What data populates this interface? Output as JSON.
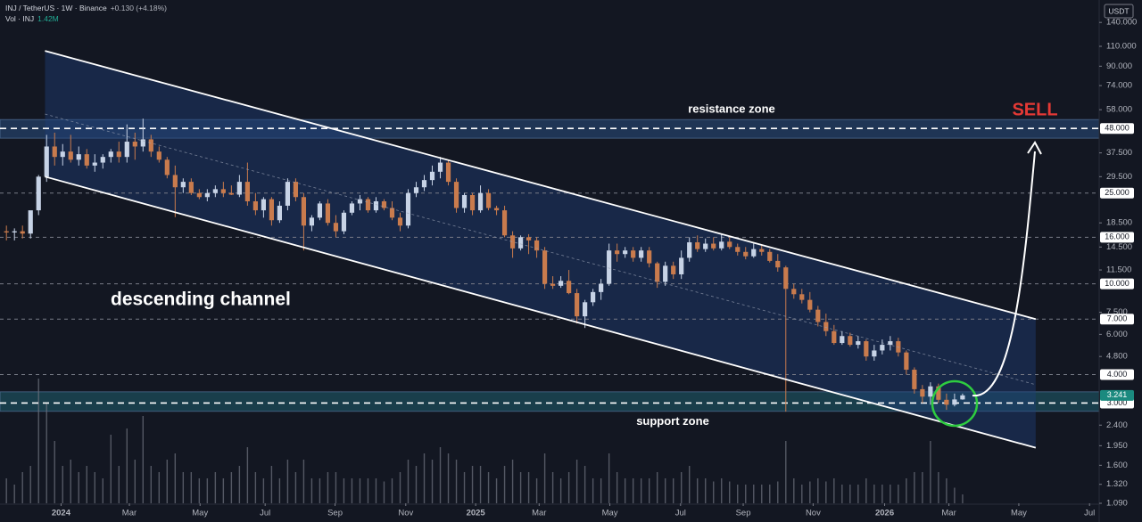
{
  "chart_data": {
    "type": "candlestick",
    "symbol_line": "INJ / TetherUS · 1W · Binance",
    "change": "+0.130 (+4.18%)",
    "volume_title": "Vol · INJ",
    "volume_label": "1.42M",
    "currency": "USDT",
    "log_scale": true,
    "color_up": "#c7d3e6",
    "color_down": "#c97b4d",
    "ylim": [
      1.09,
      175.6
    ],
    "xlim": [
      -0.8,
      136
    ],
    "vlim": [
      0,
      24
    ],
    "yticks": [
      {
        "value": 140,
        "label": "140.000"
      },
      {
        "value": 110,
        "label": "110.000"
      },
      {
        "value": 90,
        "label": "90.000"
      },
      {
        "value": 74,
        "label": "74.000"
      },
      {
        "value": 58,
        "label": "58.000"
      },
      {
        "value": 37.5,
        "label": "37.500"
      },
      {
        "value": 29.5,
        "label": "29.500"
      },
      {
        "value": 18.5,
        "label": "18.500"
      },
      {
        "value": 14.5,
        "label": "14.500"
      },
      {
        "value": 11.5,
        "label": "11.500"
      },
      {
        "value": 7.5,
        "label": "7.500"
      },
      {
        "value": 6,
        "label": "6.000"
      },
      {
        "value": 4.8,
        "label": "4.800"
      },
      {
        "value": 2.4,
        "label": "2.400"
      },
      {
        "value": 1.95,
        "label": "1.950"
      },
      {
        "value": 1.6,
        "label": "1.600"
      },
      {
        "value": 1.32,
        "label": "1.320"
      },
      {
        "value": 1.09,
        "label": "1.090"
      }
    ],
    "xticks": [
      {
        "value": 6.8,
        "label": "2024"
      },
      {
        "value": 15.3,
        "label": "Mar"
      },
      {
        "value": 24.1,
        "label": "May"
      },
      {
        "value": 32.2,
        "label": "Jul"
      },
      {
        "value": 40.9,
        "label": "Sep"
      },
      {
        "value": 49.7,
        "label": "Nov"
      },
      {
        "value": 58.4,
        "label": "2025"
      },
      {
        "value": 66.3,
        "label": "Mar"
      },
      {
        "value": 75.1,
        "label": "May"
      },
      {
        "value": 83.9,
        "label": "Jul"
      },
      {
        "value": 91.7,
        "label": "Sep"
      },
      {
        "value": 100.4,
        "label": "Nov"
      },
      {
        "value": 109.3,
        "label": "2026"
      },
      {
        "value": 117.3,
        "label": "Mar"
      },
      {
        "value": 126,
        "label": "May"
      },
      {
        "value": 134.8,
        "label": "Jul"
      }
    ],
    "levels": [
      {
        "value": 48,
        "label": "48.000",
        "color": "#ffffff"
      },
      {
        "value": 25,
        "label": "25.000",
        "color": "#787b86"
      },
      {
        "value": 16,
        "label": "16.000",
        "color": "#787b86"
      },
      {
        "value": 10,
        "label": "10.000",
        "color": "#787b86"
      },
      {
        "value": 7,
        "label": "7.000",
        "color": "#787b86"
      },
      {
        "value": 4,
        "label": "4.000",
        "color": "#787b86"
      },
      {
        "value": 3,
        "label": "3.000",
        "color": "#ffffff"
      }
    ],
    "last_price": {
      "value": 3.241,
      "label": "3.241"
    },
    "zones": [
      {
        "label": "resistance zone",
        "range": [
          43.5,
          52.5
        ],
        "color": "#2a4f7f"
      },
      {
        "label": "support zone",
        "range": [
          2.76,
          3.36
        ],
        "color": "#1f5f6e"
      }
    ],
    "channel": {
      "label": "descending channel",
      "x": [
        4.8,
        128.1
      ],
      "upper": [
        105,
        7
      ],
      "lower": [
        29.5,
        1.91
      ],
      "middle": [
        55.5,
        3.61
      ]
    },
    "signal": "SELL",
    "ohlc": [
      [
        17,
        18,
        15.5,
        16.8
      ],
      [
        16.8,
        17.5,
        15.5,
        17
      ],
      [
        17,
        18,
        15.8,
        16.6
      ],
      [
        16.6,
        20.5,
        15.8,
        21
      ],
      [
        21,
        30,
        20,
        29.5
      ],
      [
        29.5,
        45,
        28,
        40
      ],
      [
        40,
        46,
        33,
        36
      ],
      [
        36,
        41,
        33,
        38
      ],
      [
        38,
        45,
        34,
        35
      ],
      [
        35,
        40,
        33,
        37
      ],
      [
        37,
        39,
        32,
        33
      ],
      [
        33,
        37,
        31,
        34
      ],
      [
        34,
        37,
        32,
        36
      ],
      [
        36,
        39,
        34,
        38
      ],
      [
        38,
        42,
        34,
        36
      ],
      [
        36,
        50,
        34,
        42
      ],
      [
        42,
        46,
        35,
        40
      ],
      [
        40,
        53,
        38,
        43
      ],
      [
        43,
        45,
        36,
        38
      ],
      [
        38,
        40,
        34,
        35
      ],
      [
        35,
        36,
        29,
        30
      ],
      [
        30,
        33,
        19.6,
        26.5
      ],
      [
        26.5,
        29,
        25,
        28
      ],
      [
        28,
        29,
        24.5,
        25
      ],
      [
        25,
        26,
        23.5,
        24
      ],
      [
        24,
        26,
        23,
        25
      ],
      [
        25,
        27,
        24,
        26
      ],
      [
        26,
        28,
        24,
        25
      ],
      [
        25,
        27,
        24.5,
        24.6
      ],
      [
        24.6,
        30,
        24,
        28
      ],
      [
        28,
        34,
        22,
        23
      ],
      [
        23,
        25,
        20,
        21
      ],
      [
        21,
        24,
        19.5,
        23.5
      ],
      [
        23.5,
        24,
        18,
        19
      ],
      [
        19,
        23,
        18.5,
        22
      ],
      [
        22,
        29,
        21,
        28
      ],
      [
        28,
        29,
        23,
        24
      ],
      [
        24,
        25,
        14,
        18
      ],
      [
        18,
        20,
        17,
        19.5
      ],
      [
        19.5,
        23,
        19,
        22.5
      ],
      [
        22.5,
        23.5,
        18,
        18.5
      ],
      [
        18.5,
        20,
        16,
        17
      ],
      [
        17,
        21,
        16.5,
        20.5
      ],
      [
        20.5,
        23,
        20,
        22.5
      ],
      [
        22.5,
        24.5,
        21,
        23.5
      ],
      [
        23.5,
        24,
        20.5,
        21
      ],
      [
        21,
        24,
        20.5,
        23
      ],
      [
        23,
        23.5,
        21,
        21.5
      ],
      [
        21.5,
        23,
        19,
        19.5
      ],
      [
        19.5,
        20.5,
        17,
        18
      ],
      [
        18,
        26,
        17.5,
        25
      ],
      [
        25,
        28,
        24,
        26.5
      ],
      [
        26.5,
        30,
        25.5,
        28.5
      ],
      [
        28.5,
        33,
        27,
        31
      ],
      [
        31,
        36,
        29,
        34
      ],
      [
        34,
        35,
        27,
        28
      ],
      [
        28,
        29,
        20.5,
        21.5
      ],
      [
        21.5,
        25,
        20.5,
        24.5
      ],
      [
        24.5,
        25,
        20,
        21
      ],
      [
        21,
        27,
        20.5,
        25
      ],
      [
        25,
        26,
        21,
        21.5
      ],
      [
        21.5,
        22,
        20,
        21
      ],
      [
        21,
        22,
        16,
        16.3
      ],
      [
        16.3,
        17,
        13,
        14.3
      ],
      [
        14.3,
        16.3,
        14,
        16
      ],
      [
        16,
        16.5,
        13.5,
        15.5
      ],
      [
        15.5,
        16,
        13,
        14
      ],
      [
        14,
        14.5,
        9.5,
        10
      ],
      [
        10,
        10.8,
        9.5,
        9.8
      ],
      [
        9.8,
        10.8,
        9.6,
        10.3
      ],
      [
        10.3,
        11.5,
        9,
        9.1
      ],
      [
        9.1,
        9.5,
        6.7,
        7.2
      ],
      [
        7.2,
        8.5,
        6.4,
        8.3
      ],
      [
        8.3,
        9.5,
        8,
        9.2
      ],
      [
        9.2,
        10.5,
        8.5,
        10
      ],
      [
        10,
        15,
        9.8,
        14
      ],
      [
        14,
        15,
        12.5,
        13.5
      ],
      [
        13.5,
        14.5,
        13,
        14
      ],
      [
        14,
        14.5,
        12.5,
        13
      ],
      [
        13,
        14.5,
        12.5,
        14
      ],
      [
        14,
        14.5,
        11.8,
        12.3
      ],
      [
        12.3,
        12.5,
        9.6,
        10.2
      ],
      [
        10.2,
        12.5,
        9.8,
        12
      ],
      [
        12,
        12.5,
        10.5,
        11
      ],
      [
        11,
        14,
        10.5,
        13
      ],
      [
        13,
        16,
        12.5,
        15.2
      ],
      [
        15.2,
        16.3,
        13.8,
        14.2
      ],
      [
        14.2,
        15.8,
        13.8,
        15
      ],
      [
        15,
        16,
        14,
        14.3
      ],
      [
        14.3,
        16.5,
        14,
        15.3
      ],
      [
        15.3,
        16,
        14.2,
        14.5
      ],
      [
        14.5,
        15,
        13.3,
        13.8
      ],
      [
        13.8,
        14.5,
        12.8,
        13.2
      ],
      [
        13.2,
        15,
        13,
        14.2
      ],
      [
        14.2,
        14.8,
        13.3,
        13.8
      ],
      [
        13.8,
        14.2,
        12.4,
        12.6
      ],
      [
        12.6,
        13.5,
        11.3,
        11.8
      ],
      [
        11.8,
        12,
        2.75,
        9.5
      ],
      [
        9.5,
        10,
        8.6,
        9
      ],
      [
        9,
        9.5,
        8.2,
        8.5
      ],
      [
        8.5,
        9.2,
        7.5,
        7.7
      ],
      [
        7.7,
        8,
        6.5,
        6.8
      ],
      [
        6.8,
        7.4,
        5.9,
        6.2
      ],
      [
        6.2,
        6.6,
        5.4,
        5.5
      ],
      [
        5.5,
        6.2,
        5.4,
        5.9
      ],
      [
        5.9,
        6.1,
        5.3,
        5.4
      ],
      [
        5.4,
        5.9,
        5.2,
        5.6
      ],
      [
        5.6,
        5.7,
        4.6,
        4.8
      ],
      [
        4.8,
        5.4,
        4.6,
        5.1
      ],
      [
        5.1,
        5.7,
        4.9,
        5.4
      ],
      [
        5.4,
        5.9,
        5.1,
        5.6
      ],
      [
        5.6,
        5.8,
        4.8,
        5
      ],
      [
        5,
        5.1,
        4,
        4.2
      ],
      [
        4.2,
        4.3,
        3.3,
        3.45
      ],
      [
        3.45,
        3.6,
        3,
        3.2
      ],
      [
        3.2,
        3.7,
        2.95,
        3.55
      ],
      [
        3.55,
        3.65,
        3,
        3.1
      ],
      [
        3.1,
        3.3,
        2.8,
        2.95
      ],
      [
        2.95,
        3.3,
        2.9,
        3.111
      ],
      [
        3.111,
        3.3,
        3.1,
        3.241
      ]
    ],
    "volume": [
      4,
      3,
      5,
      6,
      20,
      16,
      10,
      6,
      7,
      5,
      6,
      5,
      4,
      11,
      6,
      12,
      7,
      14,
      6,
      5,
      7,
      8,
      5,
      5,
      4,
      4,
      5,
      4,
      5,
      6,
      9,
      5,
      4,
      6,
      4,
      7,
      5,
      7,
      4,
      4,
      5,
      5,
      4,
      4,
      4,
      4,
      4,
      3.5,
      4,
      5,
      7,
      6,
      8,
      7,
      9,
      8,
      7,
      5,
      6,
      6,
      5,
      4,
      6,
      7,
      5,
      5,
      4,
      8,
      5,
      4,
      5,
      7,
      6,
      4,
      4,
      8,
      5,
      4,
      4,
      4,
      4,
      5,
      4,
      4,
      5,
      6,
      4,
      4,
      3.5,
      4,
      3.5,
      3,
      3,
      3,
      3,
      3,
      3.5,
      10,
      4,
      3,
      3.5,
      4,
      3.5,
      4,
      3,
      3,
      3,
      4,
      3,
      3,
      3,
      3,
      4,
      5,
      5,
      10,
      5,
      4,
      2.5,
      1.42
    ]
  }
}
